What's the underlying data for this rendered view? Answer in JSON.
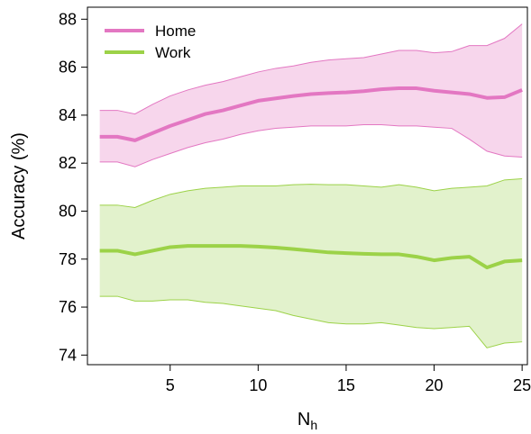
{
  "chart_data": {
    "type": "line",
    "ylabel": "Accuracy (%)",
    "xlabel": "N",
    "xlabel_subscript": "h",
    "xlim": [
      0.3,
      25.3
    ],
    "ylim": [
      73.6,
      88.5
    ],
    "xticks": [
      5,
      10,
      15,
      20,
      25
    ],
    "yticks": [
      74,
      76,
      78,
      80,
      82,
      84,
      86,
      88
    ],
    "grid": false,
    "legend_position": "top-left",
    "x": [
      1,
      2,
      3,
      4,
      5,
      6,
      7,
      8,
      9,
      10,
      11,
      12,
      13,
      14,
      15,
      16,
      17,
      18,
      19,
      20,
      21,
      22,
      23,
      24,
      25
    ],
    "series": [
      {
        "name": "Home",
        "color": "#e377c2",
        "band_color": "#f7d6ec",
        "values": [
          83.1,
          83.1,
          82.95,
          83.25,
          83.55,
          83.8,
          84.05,
          84.2,
          84.4,
          84.6,
          84.7,
          84.8,
          84.88,
          84.92,
          84.95,
          85.0,
          85.08,
          85.12,
          85.12,
          85.02,
          84.95,
          84.88,
          84.72,
          84.75,
          85.05
        ],
        "upper": [
          84.2,
          84.2,
          84.05,
          84.45,
          84.8,
          85.05,
          85.25,
          85.4,
          85.6,
          85.8,
          85.95,
          86.05,
          86.2,
          86.3,
          86.35,
          86.4,
          86.55,
          86.7,
          86.7,
          86.6,
          86.65,
          86.9,
          86.9,
          87.2,
          87.8
        ],
        "lower": [
          82.05,
          82.05,
          81.85,
          82.15,
          82.4,
          82.65,
          82.85,
          83.0,
          83.2,
          83.35,
          83.45,
          83.5,
          83.55,
          83.55,
          83.55,
          83.6,
          83.6,
          83.55,
          83.55,
          83.5,
          83.45,
          83.0,
          82.5,
          82.3,
          82.25
        ]
      },
      {
        "name": "Work",
        "color": "#9cd248",
        "band_color": "#e2f2cc",
        "values": [
          78.35,
          78.35,
          78.2,
          78.35,
          78.5,
          78.55,
          78.55,
          78.55,
          78.55,
          78.52,
          78.48,
          78.42,
          78.35,
          78.28,
          78.25,
          78.22,
          78.2,
          78.2,
          78.1,
          77.95,
          78.05,
          78.1,
          77.65,
          77.9,
          77.95
        ],
        "upper": [
          80.25,
          80.25,
          80.15,
          80.45,
          80.7,
          80.85,
          80.95,
          81.0,
          81.05,
          81.05,
          81.05,
          81.1,
          81.12,
          81.1,
          81.1,
          81.05,
          81.0,
          81.1,
          81.0,
          80.85,
          80.95,
          81.0,
          81.05,
          81.3,
          81.35
        ],
        "lower": [
          76.45,
          76.45,
          76.25,
          76.25,
          76.3,
          76.3,
          76.2,
          76.15,
          76.05,
          75.95,
          75.85,
          75.65,
          75.5,
          75.35,
          75.3,
          75.3,
          75.35,
          75.25,
          75.15,
          75.1,
          75.15,
          75.2,
          74.3,
          74.5,
          74.55
        ]
      }
    ]
  }
}
